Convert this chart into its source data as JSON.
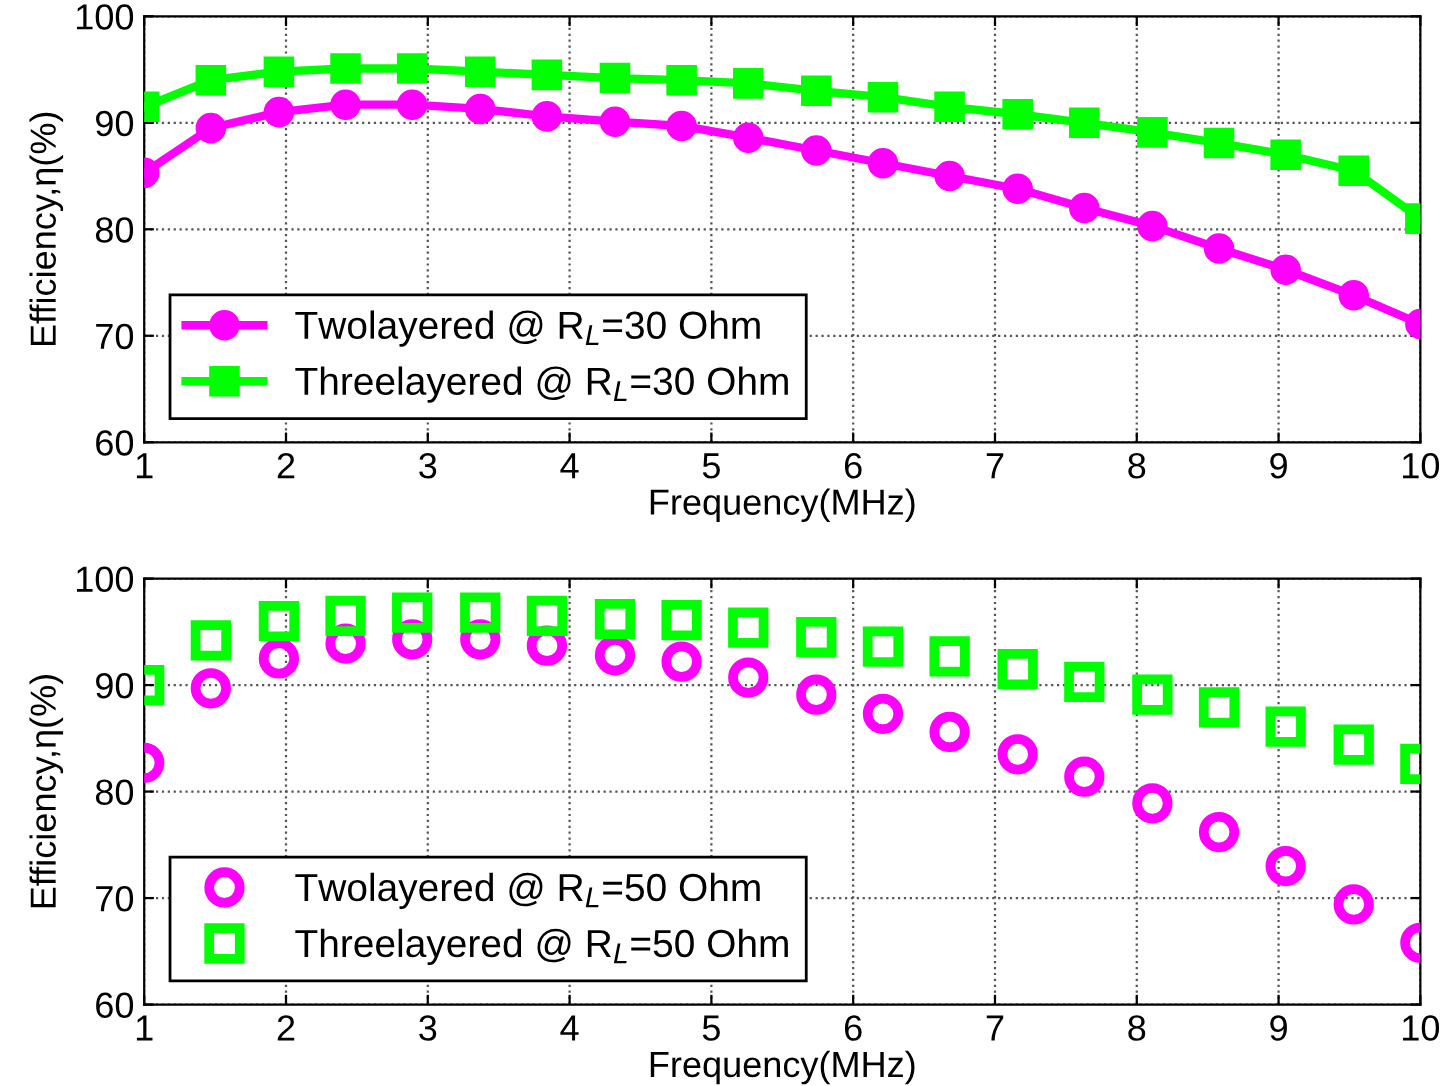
{
  "chart_data": [
    {
      "type": "line",
      "xlabel": "Frequency(MHz)",
      "ylabel": "Efficiency,η(%)",
      "xlim": [
        1,
        10
      ],
      "ylim": [
        60,
        100
      ],
      "xticks": [
        1,
        2,
        3,
        4,
        5,
        6,
        7,
        8,
        9,
        10
      ],
      "yticks": [
        60,
        70,
        80,
        90,
        100
      ],
      "grid": true,
      "legend": "bottom left",
      "line_style": "solid",
      "x": [
        1,
        1.47,
        1.95,
        2.42,
        2.89,
        3.37,
        3.84,
        4.32,
        4.79,
        5.26,
        5.74,
        6.21,
        6.68,
        7.16,
        7.63,
        8.11,
        8.58,
        9.05,
        9.53,
        10
      ],
      "series": [
        {
          "name": "Twolayered @ R$_{L}$=30 Ohm",
          "color": "#ff00ff",
          "marker": "circle",
          "values": [
            85.3,
            89.5,
            91.0,
            91.7,
            91.7,
            91.3,
            90.6,
            90.1,
            89.7,
            88.6,
            87.4,
            86.2,
            85.0,
            83.8,
            82.0,
            80.3,
            78.2,
            76.2,
            73.8,
            71.1
          ]
        },
        {
          "name": "Threelayered @ R$_{L}$=30 Ohm",
          "color": "#00ff00",
          "marker": "square",
          "values": [
            91.5,
            94.0,
            94.8,
            95.1,
            95.1,
            94.8,
            94.5,
            94.2,
            94.0,
            93.7,
            93.0,
            92.4,
            91.5,
            90.8,
            90.0,
            89.1,
            88.1,
            87.0,
            85.5,
            81.0
          ]
        }
      ]
    },
    {
      "type": "scatter",
      "xlabel": "Frequency(MHz)",
      "ylabel": "Efficiency,η(%)",
      "xlim": [
        1,
        10
      ],
      "ylim": [
        60,
        100
      ],
      "xticks": [
        1,
        2,
        3,
        4,
        5,
        6,
        7,
        8,
        9,
        10
      ],
      "yticks": [
        60,
        70,
        80,
        90,
        100
      ],
      "grid": true,
      "legend": "bottom left",
      "x": [
        1,
        1.47,
        1.95,
        2.42,
        2.89,
        3.37,
        3.84,
        4.32,
        4.79,
        5.26,
        5.74,
        6.21,
        6.68,
        7.16,
        7.63,
        8.11,
        8.58,
        9.05,
        9.53,
        10
      ],
      "series": [
        {
          "name": "Twolayered @ R$_{L}$=50 Ohm",
          "color": "#ff00ff",
          "marker": "circle",
          "values": [
            82.7,
            89.7,
            92.5,
            93.9,
            94.3,
            94.3,
            93.7,
            92.8,
            92.2,
            90.7,
            89.1,
            87.3,
            85.6,
            83.5,
            81.4,
            78.9,
            76.2,
            73.0,
            69.4,
            65.8
          ]
        },
        {
          "name": "Threelayered @ R$_{L}$=50 Ohm",
          "color": "#00ff00",
          "marker": "square",
          "values": [
            90.0,
            94.2,
            96.0,
            96.5,
            96.8,
            96.8,
            96.5,
            96.2,
            96.1,
            95.4,
            94.5,
            93.6,
            92.7,
            91.5,
            90.3,
            89.1,
            87.9,
            86.1,
            84.4,
            82.6
          ]
        }
      ]
    }
  ]
}
